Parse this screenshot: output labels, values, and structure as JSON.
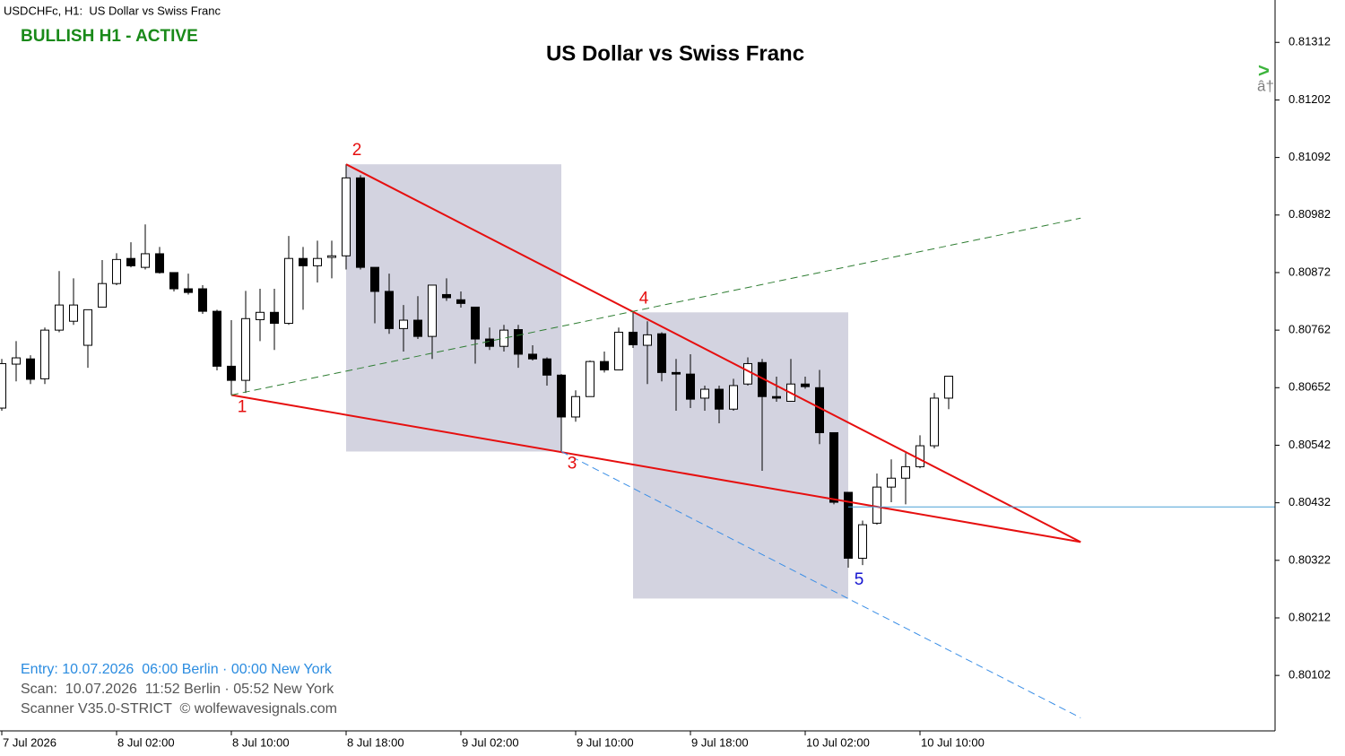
{
  "chart_data": {
    "type": "candlestick",
    "title": "US Dollar vs Swiss Franc",
    "symbol_label": "USDCHFc, H1:  US Dollar vs Swiss Franc",
    "status": "BULLISH H1 - ACTIVE",
    "status_color": "#1a8a1a",
    "corner_marker": ">",
    "corner_marker_color": "#3cb43c",
    "corner_text": "â†",
    "categories": [
      "7 Jul 2026",
      null,
      null,
      null,
      null,
      null,
      null,
      null,
      "8 Jul 02:00",
      null,
      null,
      null,
      null,
      null,
      null,
      null,
      "8 Jul 10:00",
      null,
      null,
      null,
      null,
      null,
      null,
      null,
      "8 Jul 18:00",
      null,
      null,
      null,
      null,
      null,
      null,
      null,
      "9 Jul 02:00",
      null,
      null,
      null,
      null,
      null,
      null,
      null,
      "9 Jul 10:00",
      null,
      null,
      null,
      null,
      null,
      null,
      null,
      "9 Jul 18:00",
      null,
      null,
      null,
      null,
      null,
      null,
      null,
      "10 Jul 02:00",
      null,
      null,
      null,
      null,
      null,
      null,
      null,
      "10 Jul 10:00",
      null,
      null
    ],
    "open": [
      0.80613,
      0.80697,
      0.80707,
      0.80669,
      0.80762,
      0.80779,
      0.80733,
      0.80806,
      0.80851,
      0.80899,
      0.80882,
      0.80908,
      0.80872,
      0.80841,
      0.80841,
      0.80798,
      0.80693,
      0.80666,
      0.80782,
      0.80796,
      0.80775,
      0.80899,
      0.80885,
      0.80901,
      0.80904,
      0.81053,
      0.80882,
      0.80836,
      0.80765,
      0.80781,
      0.8075,
      0.8083,
      0.8082,
      0.80806,
      0.80745,
      0.80731,
      0.80763,
      0.80716,
      0.80707,
      0.80676,
      0.80596,
      0.80635,
      0.80702,
      0.80686,
      0.80758,
      0.80733,
      0.80755,
      0.80681,
      0.80678,
      0.80632,
      0.80649,
      0.80611,
      0.80659,
      0.807,
      0.80635,
      0.80626,
      0.80659,
      0.80652,
      0.80566,
      0.80452,
      0.80326,
      0.80393,
      0.80462,
      0.80479,
      0.80501,
      0.80541,
      0.80632
    ],
    "high": [
      0.80707,
      0.80741,
      0.80714,
      0.80767,
      0.80875,
      0.80861,
      0.80801,
      0.80896,
      0.80909,
      0.8093,
      0.80964,
      0.80921,
      0.80872,
      0.8087,
      0.80848,
      0.80801,
      0.80781,
      0.80837,
      0.80841,
      0.80841,
      0.80942,
      0.80921,
      0.80933,
      0.80933,
      0.81079,
      0.81058,
      0.80882,
      0.8087,
      0.8081,
      0.80827,
      0.80848,
      0.80861,
      0.80836,
      0.80806,
      0.80767,
      0.80772,
      0.80772,
      0.80733,
      0.8071,
      0.80678,
      0.80647,
      0.80704,
      0.80721,
      0.80767,
      0.80796,
      0.80779,
      0.80758,
      0.80707,
      0.80716,
      0.80656,
      0.80656,
      0.80669,
      0.8071,
      0.80707,
      0.80673,
      0.80707,
      0.80673,
      0.80686,
      0.80566,
      0.80452,
      0.80398,
      0.80488,
      0.80515,
      0.80527,
      0.80561,
      0.80642,
      0.80674
    ],
    "low": [
      0.80608,
      0.80664,
      0.80659,
      0.80659,
      0.80758,
      0.80772,
      0.8069,
      0.80806,
      0.80848,
      0.80882,
      0.80878,
      0.8087,
      0.80836,
      0.8083,
      0.80793,
      0.80685,
      0.80638,
      0.80642,
      0.80741,
      0.80724,
      0.80772,
      0.80801,
      0.80853,
      0.80861,
      0.80878,
      0.80878,
      0.80775,
      0.80755,
      0.80721,
      0.80745,
      0.80707,
      0.80818,
      0.80805,
      0.80698,
      0.80724,
      0.80721,
      0.8069,
      0.80704,
      0.80656,
      0.8053,
      0.80587,
      0.80635,
      0.80681,
      0.80685,
      0.80728,
      0.80659,
      0.80664,
      0.80608,
      0.80613,
      0.80608,
      0.80584,
      0.80608,
      0.80656,
      0.80493,
      0.80625,
      0.80625,
      0.8065,
      0.80544,
      0.80429,
      0.80308,
      0.80313,
      0.8039,
      0.80433,
      0.80429,
      0.80498,
      0.80536,
      0.80611
    ],
    "close": [
      0.80698,
      0.80709,
      0.80668,
      0.80762,
      0.8081,
      0.8081,
      0.80801,
      0.80851,
      0.80897,
      0.80885,
      0.80908,
      0.80872,
      0.80841,
      0.80834,
      0.80798,
      0.80693,
      0.80666,
      0.80784,
      0.80796,
      0.80775,
      0.80899,
      0.80885,
      0.80899,
      0.80904,
      0.81053,
      0.80882,
      0.80836,
      0.80765,
      0.80781,
      0.8075,
      0.80848,
      0.80824,
      0.80813,
      0.80745,
      0.80731,
      0.80762,
      0.80716,
      0.80707,
      0.80676,
      0.80596,
      0.80635,
      0.80702,
      0.80686,
      0.80758,
      0.80734,
      0.80753,
      0.80681,
      0.80678,
      0.8063,
      0.80649,
      0.80611,
      0.80656,
      0.80698,
      0.80635,
      0.80632,
      0.80659,
      0.80654,
      0.80566,
      0.80433,
      0.80326,
      0.8039,
      0.80462,
      0.80479,
      0.80501,
      0.80541,
      0.80632,
      0.80674
    ],
    "up_color": "#ffffff",
    "down_color": "#000000",
    "ylim": [
      0.79996,
      0.81393
    ],
    "yticks": [
      0.81312,
      0.81202,
      0.81092,
      0.80982,
      0.80872,
      0.80762,
      0.80652,
      0.80542,
      0.80432,
      0.80322,
      0.80212,
      0.80102
    ],
    "zones": [
      {
        "start_index": 24,
        "end_index": 39,
        "top": 0.81079,
        "bottom": 0.8053,
        "color": "#d3d3e0"
      },
      {
        "start_index": 44,
        "end_index": 59,
        "top": 0.80796,
        "bottom": 0.80249,
        "color": "#d3d3e0"
      }
    ],
    "lines": [
      {
        "start_index": 16,
        "start_price": 0.80638,
        "end_index": 75.2,
        "end_price": 0.80357,
        "color": "#e60f0f",
        "dashed": false
      },
      {
        "start_index": 24,
        "start_price": 0.81079,
        "end_index": 75.2,
        "end_price": 0.80357,
        "color": "#e60f0f",
        "dashed": false
      },
      {
        "start_index": 16,
        "start_price": 0.80638,
        "end_index": 75.2,
        "end_price": 0.80976,
        "color": "#2e7d32",
        "dashed": true
      },
      {
        "start_index": 39,
        "start_price": 0.8053,
        "end_index": 75.2,
        "end_price": 0.80021,
        "color": "#3a8ee6",
        "dashed": true
      }
    ],
    "level": {
      "price": 0.80424,
      "start_index": 59,
      "color": "#4a9fd6"
    },
    "wave_points": [
      {
        "label": "1",
        "index": 16,
        "price": 0.80638,
        "position": "below",
        "color": "#e60f0f"
      },
      {
        "label": "2",
        "index": 24,
        "price": 0.81079,
        "position": "above",
        "color": "#e60f0f"
      },
      {
        "label": "3",
        "index": 39,
        "price": 0.8053,
        "position": "below",
        "color": "#e60f0f"
      },
      {
        "label": "4",
        "index": 44,
        "price": 0.80796,
        "position": "above",
        "color": "#e60f0f"
      },
      {
        "label": "5",
        "index": 59,
        "price": 0.80308,
        "position": "below",
        "color": "#1515d0"
      }
    ],
    "info_lines": [
      {
        "text": "Entry: 10.07.2026  06:00 Berlin · 00:00 New York",
        "color": "#2b8ce0"
      },
      {
        "text": "Scan:  10.07.2026  11:52 Berlin · 05:52 New York",
        "color": "#555555"
      },
      {
        "text": "Scanner V35.0-STRICT  © wolfewavesignals.com",
        "color": "#555555"
      }
    ]
  }
}
